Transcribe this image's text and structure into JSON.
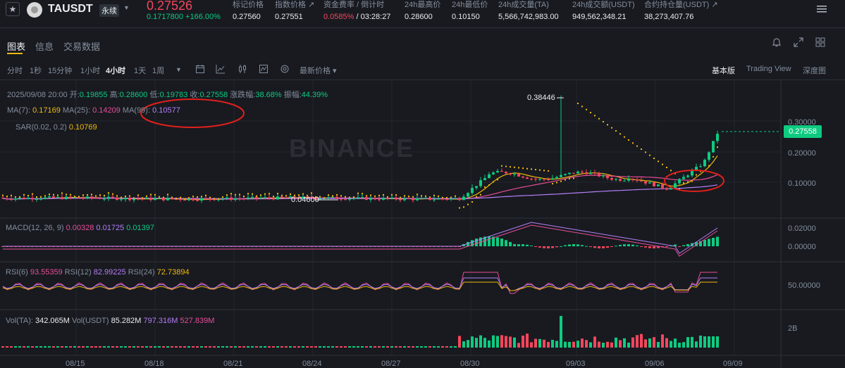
{
  "header": {
    "symbol": "TAUSDT",
    "contract_type": "永续",
    "last_price": "0.27526",
    "change": "0.1717800 +166.00%",
    "stats": [
      {
        "label": "标记价格",
        "value": "0.27560"
      },
      {
        "label": "指数价格 ↗",
        "value": "0.27551"
      },
      {
        "label": "资金费率 / 倒计时",
        "rate": "0.0585%",
        "countdown": " / 03:28:27"
      },
      {
        "label": "24h最高价",
        "value": "0.28600"
      },
      {
        "label": "24h最低价",
        "value": "0.10150"
      },
      {
        "label": "24h成交量(TA)",
        "value": "5,566,742,983.00"
      },
      {
        "label": "24h成交额(USDT)",
        "value": "949,562,348.21"
      },
      {
        "label": "合约持仓量(USDT) ↗",
        "value": "38,273,407.76"
      }
    ]
  },
  "tabs": [
    "图表",
    "信息",
    "交易数据"
  ],
  "toolbar": {
    "intervals": [
      "分时",
      "1秒",
      "15分钟",
      "1小时",
      "4小时",
      "1天",
      "1周"
    ],
    "active_interval": "4小时",
    "price_type": "最新价格 ▾",
    "views": [
      "基本版",
      "Trading View",
      "深度图"
    ]
  },
  "legend": {
    "ohlc": {
      "date": "2025/09/08 20:00",
      "open_label": "开:",
      "open": "0.19855",
      "high_label": "高:",
      "high": "0.28600",
      "low_label": "低:",
      "low": "0.19783",
      "close_label": "收:",
      "close": "0.27558",
      "chg_label": "涨跌幅:",
      "chg": "38.68%",
      "amp_label": "振幅:",
      "amp": "44.39%"
    },
    "ma": {
      "ma7_label": "MA(7):",
      "ma7": "0.17169",
      "ma25_label": "MA(25):",
      "ma25": "0.14209",
      "ma99_label": "MA(99):",
      "ma99": "0.10577"
    },
    "sar": {
      "label": "SAR(0.02, 0.2)",
      "value": "0.10769"
    },
    "macd": {
      "label": "MACD(12, 26, 9)",
      "v1": "0.00328",
      "v2": "0.01725",
      "v3": "0.01397"
    },
    "rsi": {
      "l6": "RSI(6)",
      "v6": "93.55359",
      "l12": "RSI(12)",
      "v12": "82.99225",
      "l24": "RSI(24)",
      "v24": "72.73894"
    },
    "vol": {
      "l1": "Vol(TA):",
      "v1": "342.065M",
      "l2": "Vol(USDT)",
      "v2": "85.282M",
      "v3": "797.316M",
      "v4": "527.839M"
    }
  },
  "chart_data": {
    "type": "candlestick",
    "price_axis": [
      "0.30000",
      "0.20000",
      "0.10000"
    ],
    "current_price_tag": "0.27558",
    "high_annotation": "0.38446",
    "low_annotation": "0.04600",
    "macd_axis": [
      "0.02000",
      "0.00000"
    ],
    "rsi_axis": [
      "50.00000"
    ],
    "vol_axis": [
      "2B"
    ],
    "dates": [
      "08/15",
      "08/18",
      "08/21",
      "08/24",
      "08/27",
      "08/30",
      "09/03",
      "09/06",
      "09/09"
    ],
    "watermark": "BINANCE"
  },
  "colors": {
    "up": "#0ecb81",
    "down": "#f6465d",
    "accent": "#f0b90b",
    "background": "#181a20"
  }
}
